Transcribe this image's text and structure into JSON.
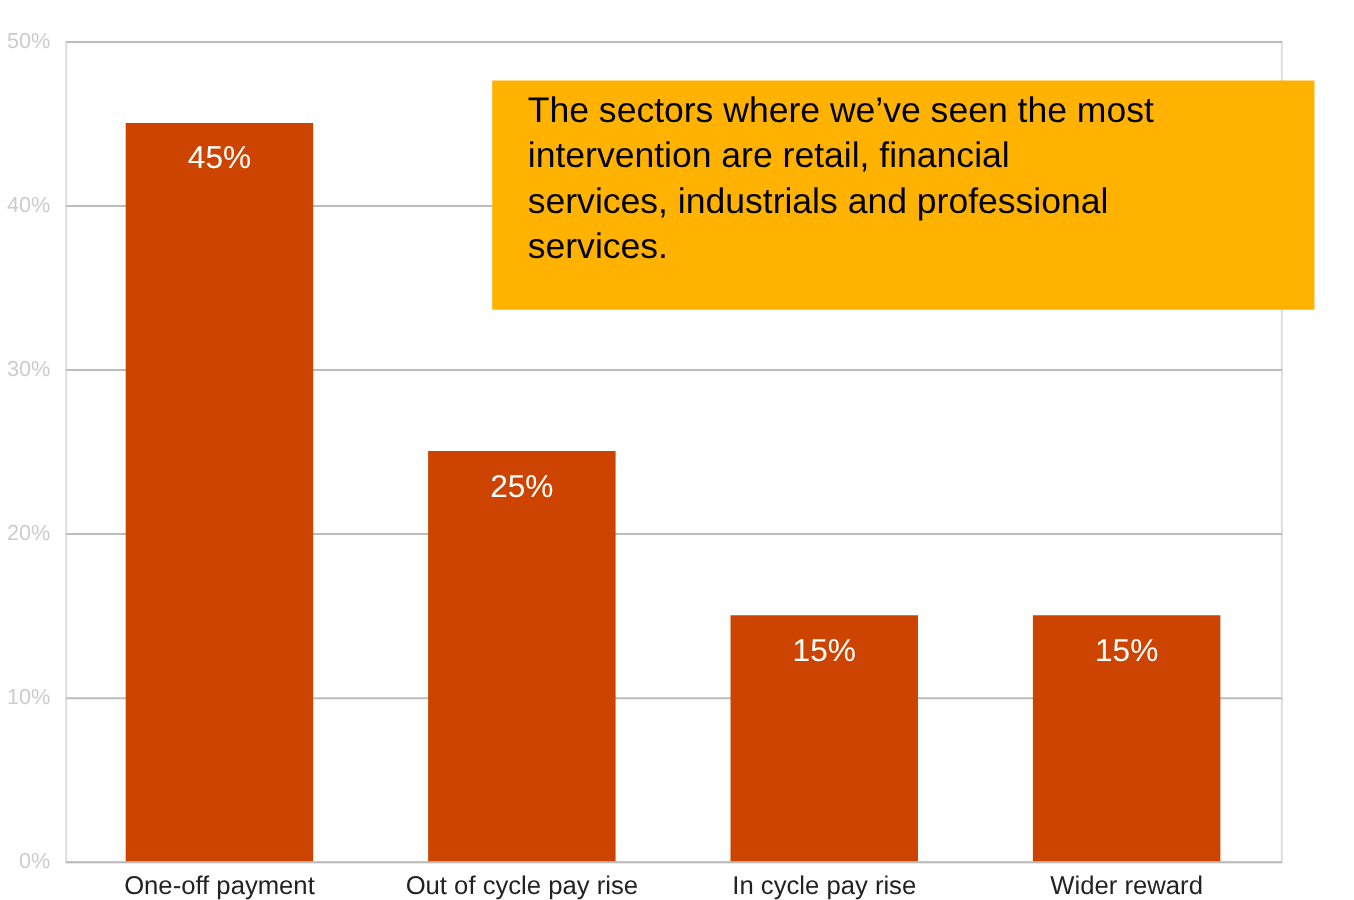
{
  "chart_data": {
    "type": "bar",
    "categories": [
      "One-off payment",
      "Out of cycle pay rise",
      "In cycle pay rise",
      "Wider reward"
    ],
    "values": [
      45,
      25,
      15,
      15
    ],
    "color": "#cc4400",
    "ylim": [
      0,
      50
    ],
    "yticks": [
      {
        "value": 0,
        "label": "0%"
      },
      {
        "value": 10,
        "label": "10%"
      },
      {
        "value": 20,
        "label": "20%"
      },
      {
        "value": 30,
        "label": "30%"
      },
      {
        "value": 40,
        "label": "40%"
      },
      {
        "value": 50,
        "label": "50%"
      }
    ],
    "value_labels": [
      "45%",
      "25%",
      "15%",
      "15%"
    ],
    "grid": "y",
    "annotations": [
      "The sectors where we’ve seen the most intervention are retail, financial services, industrials and professional services."
    ]
  }
}
